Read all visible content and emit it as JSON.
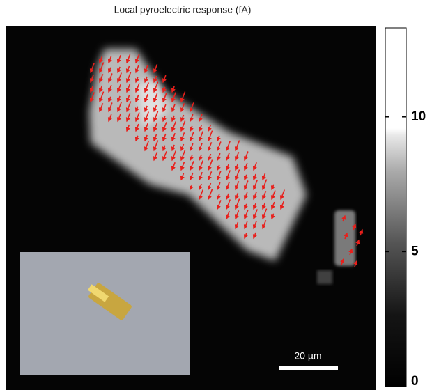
{
  "title": "Local pyroelectric response (fA)",
  "colorbar": {
    "lim": [
      0,
      13.3
    ],
    "ticks": [
      0,
      5,
      10
    ]
  },
  "scale_bar": {
    "label": "20 µm"
  }
}
